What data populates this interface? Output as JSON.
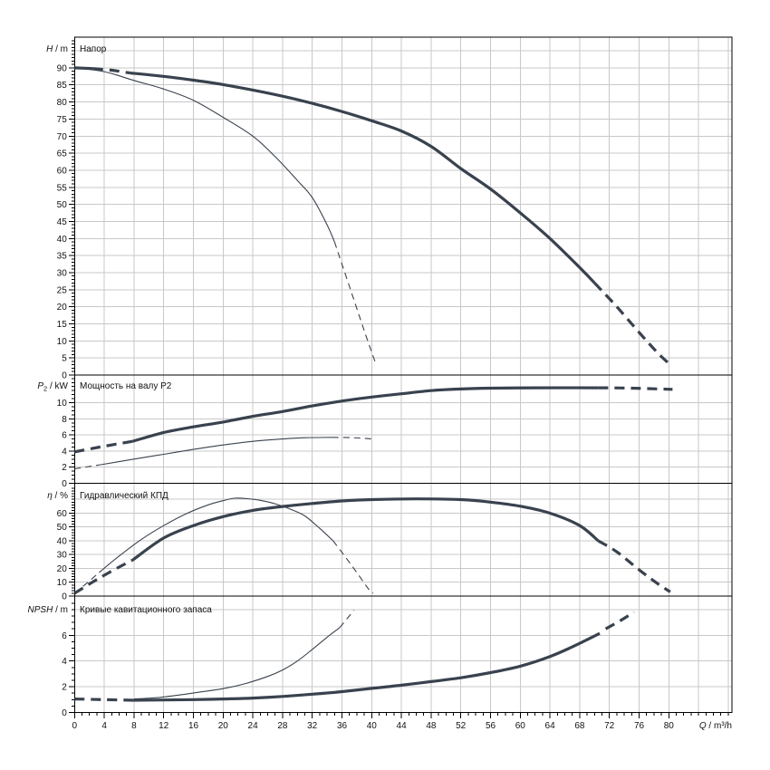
{
  "colors": {
    "background": "#ffffff",
    "curve": "#39424E",
    "grid": "#C8C8C8",
    "border": "#000000",
    "text": "#111111"
  },
  "x_axis": {
    "var": "Q",
    "unit": " / m³/h",
    "min": 0,
    "max": 88.5,
    "tick_labels": [
      0,
      4,
      8,
      12,
      16,
      20,
      24,
      28,
      32,
      36,
      40,
      44,
      48,
      52,
      56,
      60,
      64,
      68,
      72,
      76,
      80
    ],
    "minor_step": 1,
    "grid": [
      4,
      8,
      12,
      16,
      20,
      24,
      28,
      32,
      36,
      40,
      44,
      48,
      52,
      56,
      60,
      64,
      68,
      72,
      76,
      80,
      84,
      88
    ]
  },
  "chart_data": [
    {
      "id": "head",
      "type": "line",
      "title": "Напор",
      "y_axis": {
        "var": "H",
        "unit": " / m",
        "min": 0,
        "max": 99,
        "tick_labels": [
          0,
          5,
          10,
          15,
          20,
          25,
          30,
          35,
          40,
          45,
          50,
          55,
          60,
          65,
          70,
          75,
          80,
          85,
          90
        ],
        "minor_step": 1,
        "grid": [
          5,
          10,
          15,
          20,
          25,
          30,
          35,
          40,
          45,
          50,
          55,
          60,
          65,
          70,
          75,
          80,
          85,
          90,
          95
        ]
      },
      "series": [
        {
          "name": "primary-pump-curve",
          "style": "thick",
          "segments": [
            {
              "dash": false,
              "points": [
                [
                  0,
                  90
                ],
                [
                  2.5,
                  89.8
                ]
              ]
            },
            {
              "dash": true,
              "points": [
                [
                  2.5,
                  89.8
                ],
                [
                  5,
                  89.3
                ],
                [
                  7.5,
                  88.5
                ]
              ]
            },
            {
              "dash": false,
              "points": [
                [
                  7.5,
                  88.5
                ],
                [
                  12,
                  87.5
                ],
                [
                  16,
                  86.4
                ],
                [
                  20,
                  85.1
                ],
                [
                  24,
                  83.5
                ],
                [
                  28,
                  81.7
                ],
                [
                  32,
                  79.6
                ],
                [
                  36,
                  77.2
                ],
                [
                  40,
                  74.5
                ],
                [
                  44,
                  71.5
                ],
                [
                  48,
                  67
                ],
                [
                  52,
                  60.5
                ],
                [
                  56,
                  54.5
                ],
                [
                  60,
                  47.5
                ],
                [
                  64,
                  40
                ],
                [
                  68,
                  31.5
                ],
                [
                  70,
                  27
                ]
              ]
            },
            {
              "dash": true,
              "points": [
                [
                  70,
                  27
                ],
                [
                  73,
                  20
                ],
                [
                  76,
                  12.5
                ],
                [
                  78.5,
                  6.5
                ],
                [
                  80.3,
                  2.8
                ]
              ]
            }
          ]
        },
        {
          "name": "secondary-pump-curve",
          "style": "thin",
          "segments": [
            {
              "dash": false,
              "points": [
                [
                  0,
                  90
                ],
                [
                  4,
                  88.9
                ],
                [
                  8,
                  86.3
                ],
                [
                  12,
                  83.8
                ],
                [
                  16,
                  80.5
                ],
                [
                  20,
                  75.5
                ],
                [
                  24,
                  70
                ],
                [
                  27,
                  64
                ],
                [
                  30,
                  57
                ],
                [
                  32,
                  52
                ],
                [
                  34,
                  44
                ],
                [
                  35,
                  39
                ]
              ]
            },
            {
              "dash": true,
              "points": [
                [
                  35,
                  39
                ],
                [
                  37,
                  26
                ],
                [
                  39,
                  13
                ],
                [
                  40.6,
                  3
                ]
              ]
            }
          ]
        }
      ]
    },
    {
      "id": "power",
      "type": "line",
      "title": "Мощность на валу P2",
      "y_axis": {
        "var": "P",
        "var_sub": "2",
        "unit": " / kW",
        "min": 0,
        "max": 13.43,
        "tick_labels": [
          0,
          2,
          4,
          6,
          8,
          10
        ],
        "minor_step": 0.5,
        "grid": [
          2,
          4,
          6,
          8,
          10
        ]
      },
      "series": [
        {
          "name": "primary-power-curve",
          "style": "thick",
          "segments": [
            {
              "dash": true,
              "points": [
                [
                  0,
                  3.9
                ],
                [
                  4,
                  4.6
                ],
                [
                  7.8,
                  5.2
                ]
              ]
            },
            {
              "dash": false,
              "points": [
                [
                  7.8,
                  5.2
                ],
                [
                  12,
                  6.3
                ],
                [
                  16,
                  7.0
                ],
                [
                  20,
                  7.6
                ],
                [
                  24,
                  8.3
                ],
                [
                  28,
                  8.9
                ],
                [
                  32,
                  9.6
                ],
                [
                  36,
                  10.2
                ],
                [
                  40,
                  10.7
                ],
                [
                  44,
                  11.1
                ],
                [
                  48,
                  11.5
                ],
                [
                  52,
                  11.7
                ],
                [
                  56,
                  11.8
                ],
                [
                  62,
                  11.85
                ],
                [
                  70.5,
                  11.85
                ]
              ]
            },
            {
              "dash": true,
              "points": [
                [
                  70.5,
                  11.85
                ],
                [
                  75,
                  11.8
                ],
                [
                  80.5,
                  11.65
                ]
              ]
            }
          ]
        },
        {
          "name": "secondary-power-curve",
          "style": "thin",
          "segments": [
            {
              "dash": true,
              "points": [
                [
                  0,
                  1.8
                ],
                [
                  3.5,
                  2.3
                ]
              ]
            },
            {
              "dash": false,
              "points": [
                [
                  3.5,
                  2.3
                ],
                [
                  8,
                  3.0
                ],
                [
                  12,
                  3.6
                ],
                [
                  16,
                  4.2
                ],
                [
                  20,
                  4.75
                ],
                [
                  24,
                  5.2
                ],
                [
                  28,
                  5.5
                ],
                [
                  31,
                  5.65
                ],
                [
                  34.7,
                  5.7
                ]
              ]
            },
            {
              "dash": true,
              "points": [
                [
                  34.7,
                  5.7
                ],
                [
                  37.5,
                  5.65
                ],
                [
                  40.2,
                  5.5
                ]
              ]
            }
          ]
        }
      ]
    },
    {
      "id": "efficiency",
      "type": "line",
      "title": "Гидравлический КПД",
      "y_axis": {
        "var": "η",
        "unit": " / %",
        "min": 0,
        "max": 81.6,
        "tick_labels": [
          0,
          10,
          20,
          30,
          40,
          50,
          60
        ],
        "minor_step": 2,
        "grid": [
          10,
          20,
          30,
          40,
          50,
          60,
          70
        ]
      },
      "series": [
        {
          "name": "primary-efficiency-curve",
          "style": "thick",
          "segments": [
            {
              "dash": true,
              "points": [
                [
                  0,
                  2
                ],
                [
                  3,
                  12
                ],
                [
                  6,
                  21
                ],
                [
                  7.8,
                  26
                ]
              ]
            },
            {
              "dash": false,
              "points": [
                [
                  7.8,
                  26
                ],
                [
                  12,
                  42
                ],
                [
                  16,
                  51
                ],
                [
                  20,
                  57.5
                ],
                [
                  24,
                  62
                ],
                [
                  28,
                  64.8
                ],
                [
                  32,
                  67
                ],
                [
                  36,
                  68.8
                ],
                [
                  40,
                  69.8
                ],
                [
                  46,
                  70.3
                ],
                [
                  52,
                  69.8
                ],
                [
                  56,
                  68
                ],
                [
                  60,
                  65
                ],
                [
                  64,
                  60
                ],
                [
                  68,
                  51
                ],
                [
                  70.5,
                  40
                ]
              ]
            },
            {
              "dash": true,
              "points": [
                [
                  70.5,
                  40
                ],
                [
                  73,
                  32
                ],
                [
                  76,
                  19
                ],
                [
                  78.5,
                  9
                ],
                [
                  80.2,
                  3
                ]
              ]
            }
          ]
        },
        {
          "name": "secondary-efficiency-curve",
          "style": "thin",
          "segments": [
            {
              "dash": true,
              "points": [
                [
                  0,
                  2
                ],
                [
                  1.8,
                  10
                ],
                [
                  3.3,
                  17
                ]
              ]
            },
            {
              "dash": false,
              "points": [
                [
                  3.3,
                  17
                ],
                [
                  6,
                  29
                ],
                [
                  9,
                  41
                ],
                [
                  12,
                  51
                ],
                [
                  15,
                  59.5
                ],
                [
                  18,
                  66
                ],
                [
                  20,
                  69
                ],
                [
                  21.5,
                  70.8
                ],
                [
                  23,
                  70.6
                ],
                [
                  25,
                  69.3
                ],
                [
                  27,
                  66.8
                ],
                [
                  29,
                  63
                ],
                [
                  31,
                  58
                ],
                [
                  33,
                  49
                ],
                [
                  34.8,
                  40
                ]
              ]
            },
            {
              "dash": true,
              "points": [
                [
                  34.8,
                  40
                ],
                [
                  36.5,
                  28
                ],
                [
                  38,
                  17
                ],
                [
                  39.6,
                  5
                ],
                [
                  40.2,
                  2
                ]
              ]
            }
          ]
        }
      ]
    },
    {
      "id": "npsh",
      "type": "line",
      "title": "Кривые кавитационного запаса",
      "y_axis": {
        "var": "NPSH",
        "unit": " / m",
        "min": 0,
        "max": 9.05,
        "tick_labels": [
          0,
          2,
          4,
          6
        ],
        "minor_step": 0.5,
        "grid": [
          2,
          4,
          6,
          8
        ]
      },
      "series": [
        {
          "name": "primary-npsh-curve",
          "style": "thick",
          "segments": [
            {
              "dash": true,
              "points": [
                [
                  0,
                  1.05
                ],
                [
                  4,
                  1.0
                ],
                [
                  7.9,
                  0.95
                ]
              ]
            },
            {
              "dash": false,
              "points": [
                [
                  7.9,
                  0.95
                ],
                [
                  12,
                  0.97
                ],
                [
                  16,
                  1.0
                ],
                [
                  20,
                  1.05
                ],
                [
                  24,
                  1.12
                ],
                [
                  28,
                  1.25
                ],
                [
                  32,
                  1.42
                ],
                [
                  36,
                  1.62
                ],
                [
                  40,
                  1.87
                ],
                [
                  44,
                  2.12
                ],
                [
                  48,
                  2.4
                ],
                [
                  52,
                  2.7
                ],
                [
                  56,
                  3.1
                ],
                [
                  60,
                  3.6
                ],
                [
                  64,
                  4.35
                ],
                [
                  67,
                  5.1
                ],
                [
                  70.7,
                  6.15
                ]
              ]
            },
            {
              "dash": true,
              "points": [
                [
                  71.5,
                  6.5
                ],
                [
                  73.5,
                  7.15
                ],
                [
                  75.3,
                  7.8
                ]
              ]
            }
          ]
        },
        {
          "name": "secondary-npsh-curve",
          "style": "thin",
          "segments": [
            {
              "dash": false,
              "points": [
                [
                  8,
                  1.05
                ],
                [
                  11,
                  1.15
                ],
                [
                  14,
                  1.35
                ],
                [
                  17,
                  1.6
                ],
                [
                  20,
                  1.85
                ],
                [
                  23,
                  2.25
                ],
                [
                  26,
                  2.8
                ],
                [
                  28,
                  3.3
                ],
                [
                  30,
                  4.0
                ],
                [
                  32,
                  4.9
                ],
                [
                  34,
                  5.85
                ],
                [
                  35.7,
                  6.6
                ]
              ]
            },
            {
              "dash": true,
              "points": [
                [
                  35.7,
                  6.6
                ],
                [
                  36.7,
                  7.3
                ],
                [
                  37.6,
                  7.95
                ]
              ]
            }
          ]
        }
      ]
    }
  ]
}
